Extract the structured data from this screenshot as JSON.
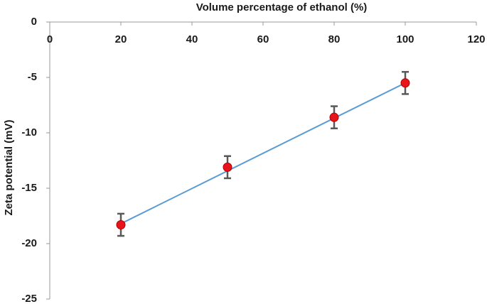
{
  "chart_data": {
    "type": "scatter",
    "title": "Volume percentage of ethanol (%)",
    "y_label": "Zeta potential (mV)",
    "x": [
      20,
      50,
      80,
      100
    ],
    "series": [
      {
        "color": "#e8141b",
        "values": [
          -18.3,
          -13.1,
          -8.6,
          -5.5
        ],
        "errors": [
          1,
          1,
          1,
          1
        ],
        "error_color": "#595959"
      }
    ],
    "trendline": {
      "color": "#5b9bd5",
      "x": [
        20,
        100
      ],
      "y": [
        -18.2,
        -5.5
      ]
    },
    "xlim": [
      0,
      120
    ],
    "xticks": [
      0,
      20,
      40,
      60,
      80,
      100,
      120
    ],
    "ylim": [
      -25,
      0
    ],
    "yticks": [
      0,
      -5,
      -10,
      -15,
      -20,
      -25
    ]
  }
}
